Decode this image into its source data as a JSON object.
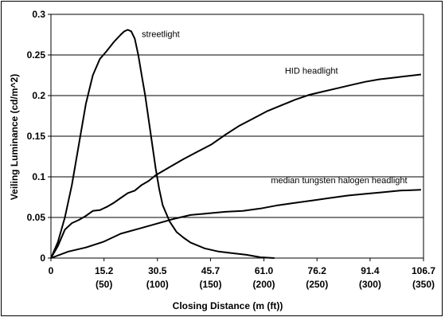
{
  "chart_data": {
    "type": "line",
    "xlabel": "Closing Distance (m (ft))",
    "ylabel": "Veiling Luminance (cd/m^2)",
    "xlim": [
      0,
      106.7
    ],
    "ylim": [
      0,
      0.3
    ],
    "grid": "horizontal",
    "x_ticks": [
      {
        "value": 0,
        "label": "0",
        "sub": ""
      },
      {
        "value": 15.2,
        "label": "15.2",
        "sub": "(50)"
      },
      {
        "value": 30.5,
        "label": "30.5",
        "sub": "(100)"
      },
      {
        "value": 45.7,
        "label": "45.7",
        "sub": "(150)"
      },
      {
        "value": 61.0,
        "label": "61.0",
        "sub": "(200)"
      },
      {
        "value": 76.2,
        "label": "76.2",
        "sub": "(250)"
      },
      {
        "value": 91.4,
        "label": "91.4",
        "sub": "(300)"
      },
      {
        "value": 106.7,
        "label": "106.7",
        "sub": "(350)"
      }
    ],
    "y_ticks": [
      {
        "value": 0,
        "label": "0"
      },
      {
        "value": 0.05,
        "label": "0.05"
      },
      {
        "value": 0.1,
        "label": "0.1"
      },
      {
        "value": 0.15,
        "label": "0.15"
      },
      {
        "value": 0.2,
        "label": "0.2"
      },
      {
        "value": 0.25,
        "label": "0.25"
      },
      {
        "value": 0.3,
        "label": "0.3"
      }
    ],
    "series": [
      {
        "name": "streetlight",
        "label_at": [
          26,
          0.272
        ],
        "x": [
          0,
          2,
          4,
          6,
          8,
          10,
          12,
          14,
          16,
          18,
          20,
          21,
          22,
          23,
          24,
          25,
          26,
          27,
          28,
          29,
          30,
          31,
          32,
          34,
          36,
          38,
          40,
          44,
          48,
          52,
          56,
          60,
          64
        ],
        "y": [
          0,
          0.02,
          0.05,
          0.09,
          0.14,
          0.19,
          0.225,
          0.245,
          0.255,
          0.266,
          0.275,
          0.279,
          0.281,
          0.279,
          0.27,
          0.25,
          0.225,
          0.2,
          0.17,
          0.14,
          0.11,
          0.085,
          0.065,
          0.045,
          0.032,
          0.025,
          0.019,
          0.012,
          0.008,
          0.006,
          0.004,
          0.001,
          0
        ]
      },
      {
        "name": "HID headlight",
        "label_at": [
          67,
          0.227
        ],
        "x": [
          0,
          2,
          4,
          6,
          8,
          10,
          12,
          14,
          16,
          18,
          20,
          22,
          24,
          26,
          28,
          30,
          34,
          38,
          42,
          46,
          50,
          54,
          58,
          62,
          66,
          70,
          74,
          78,
          82,
          86,
          90,
          94,
          98,
          102,
          106
        ],
        "y": [
          0,
          0.015,
          0.035,
          0.043,
          0.047,
          0.052,
          0.058,
          0.059,
          0.063,
          0.068,
          0.074,
          0.08,
          0.083,
          0.09,
          0.095,
          0.102,
          0.112,
          0.122,
          0.131,
          0.14,
          0.152,
          0.163,
          0.172,
          0.181,
          0.188,
          0.195,
          0.201,
          0.205,
          0.209,
          0.213,
          0.217,
          0.22,
          0.222,
          0.224,
          0.226
        ]
      },
      {
        "name": "median tungsten halogen headlight",
        "label_at": [
          63,
          0.092
        ],
        "x": [
          0,
          5,
          10,
          15,
          20,
          25,
          30,
          35,
          40,
          45,
          50,
          55,
          60,
          65,
          70,
          75,
          80,
          85,
          90,
          95,
          100,
          106
        ],
        "y": [
          0,
          0.008,
          0.013,
          0.02,
          0.03,
          0.036,
          0.042,
          0.048,
          0.053,
          0.055,
          0.057,
          0.058,
          0.061,
          0.065,
          0.068,
          0.071,
          0.074,
          0.077,
          0.079,
          0.081,
          0.083,
          0.084
        ]
      }
    ]
  }
}
